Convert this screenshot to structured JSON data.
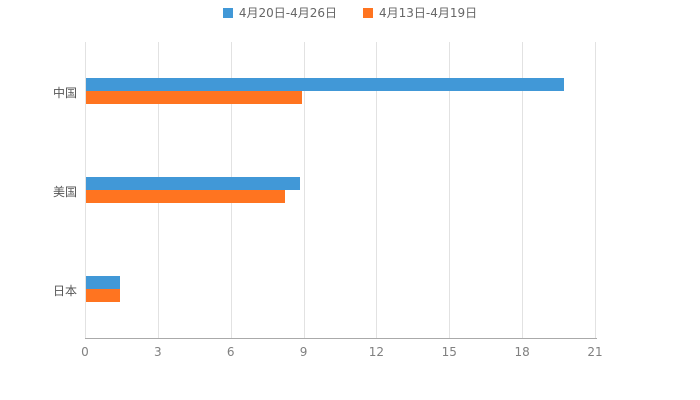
{
  "chart_data": {
    "type": "bar",
    "orientation": "horizontal",
    "title": "",
    "xlabel": "",
    "ylabel": "",
    "categories": [
      "中国",
      "美国",
      "日本"
    ],
    "series": [
      {
        "name": "4月20日-4月26日",
        "color": "#4198D7",
        "values": [
          19.7,
          8.8,
          1.4
        ]
      },
      {
        "name": "4月13日-4月19日",
        "color": "#FF7420",
        "values": [
          8.9,
          8.2,
          1.4
        ]
      }
    ],
    "xlim": [
      0,
      21
    ],
    "xticks": [
      0,
      3,
      6,
      9,
      12,
      15,
      18,
      21
    ],
    "grid": true,
    "legend_position": "top"
  }
}
